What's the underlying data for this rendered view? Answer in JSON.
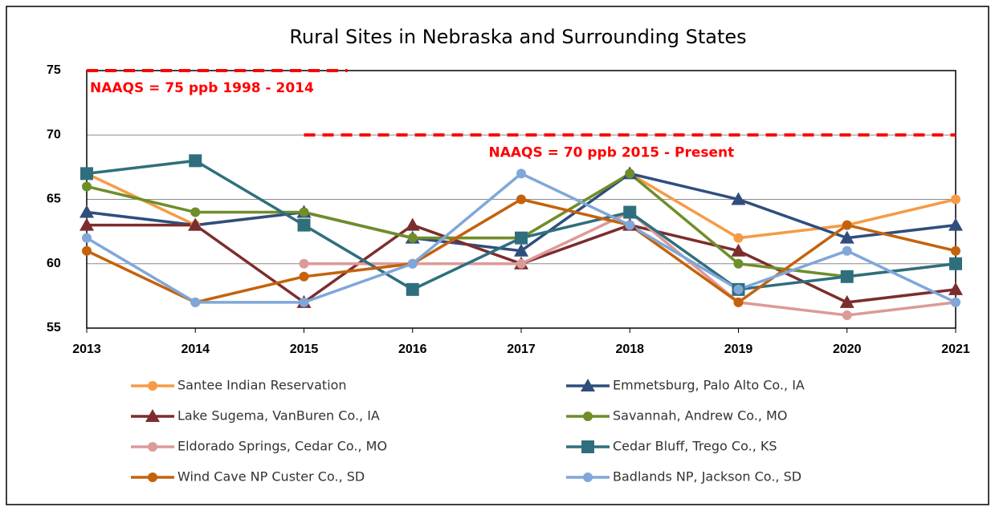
{
  "chart_data": {
    "type": "line",
    "title": "Rural Sites in Nebraska and Surrounding States",
    "x": [
      2013,
      2014,
      2015,
      2016,
      2017,
      2018,
      2019,
      2020,
      2021
    ],
    "xlim": [
      2013,
      2021
    ],
    "xticks": [
      2013,
      2014,
      2015,
      2016,
      2017,
      2018,
      2019,
      2020,
      2021
    ],
    "ylim": [
      55,
      75
    ],
    "yticks": [
      55,
      60,
      65,
      70,
      75
    ],
    "grid": true,
    "series": [
      {
        "name": "Santee Indian Reservation",
        "color": "#f79a46",
        "marker": "circle",
        "values": [
          67,
          63,
          64,
          62,
          62,
          67,
          62,
          63,
          65
        ]
      },
      {
        "name": "Emmetsburg, Palo Alto Co., IA",
        "color": "#2f4e7d",
        "marker": "triangle",
        "values": [
          64,
          63,
          64,
          62,
          61,
          67,
          65,
          62,
          63
        ]
      },
      {
        "name": "Lake Sugema, VanBuren Co., IA",
        "color": "#7c2d2d",
        "marker": "triangle",
        "values": [
          63,
          63,
          57,
          63,
          60,
          63,
          61,
          57,
          58
        ]
      },
      {
        "name": "Savannah, Andrew Co., MO",
        "color": "#6e8e2a",
        "marker": "circle",
        "values": [
          66,
          64,
          64,
          62,
          62,
          67,
          60,
          59,
          60
        ]
      },
      {
        "name": "Eldorado Springs, Cedar Co., MO",
        "color": "#dc9a98",
        "marker": "circle",
        "values": [
          null,
          null,
          60,
          60,
          60,
          64,
          57,
          56,
          57
        ]
      },
      {
        "name": "Cedar Bluff, Trego Co., KS",
        "color": "#2f6f7d",
        "marker": "square",
        "values": [
          67,
          68,
          63,
          58,
          62,
          64,
          58,
          59,
          60
        ]
      },
      {
        "name": "Wind Cave NP Custer Co., SD",
        "color": "#c4620c",
        "marker": "circle",
        "values": [
          61,
          57,
          59,
          60,
          65,
          63,
          57,
          63,
          61
        ]
      },
      {
        "name": "Badlands NP, Jackson Co., SD",
        "color": "#7fa7da",
        "marker": "circle",
        "values": [
          62,
          57,
          57,
          60,
          67,
          63,
          58,
          61,
          57
        ]
      }
    ],
    "annotations": [
      {
        "text": "NAAQS = 75 ppb 1998 - 2014",
        "value": 75,
        "x": [
          2013,
          2015.4
        ],
        "color": "#ff0000"
      },
      {
        "text": "NAAQS = 70 ppb 2015 - Present",
        "value": 70,
        "x": [
          2015,
          2021
        ],
        "color": "#ff0000"
      }
    ]
  }
}
